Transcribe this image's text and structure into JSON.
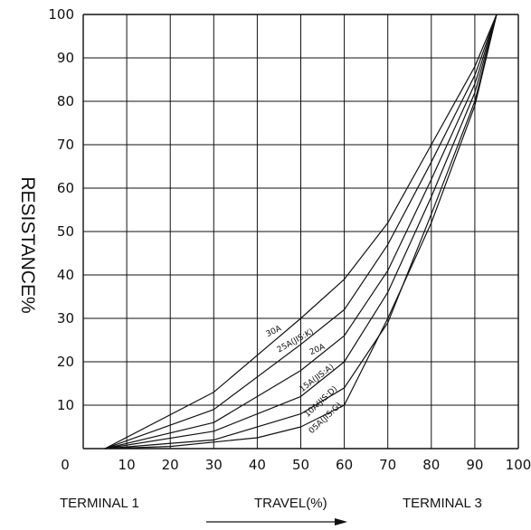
{
  "chart_data": {
    "type": "line",
    "title": "",
    "xlabel": "TRAVEL(%)",
    "ylabel": "RESISTANCE%",
    "xlim": [
      0,
      100
    ],
    "ylim": [
      0,
      100
    ],
    "x_ticks": [
      "0",
      "10",
      "20",
      "30",
      "40",
      "50",
      "60",
      "70",
      "80",
      "90",
      "100"
    ],
    "y_ticks": [
      "10",
      "20",
      "30",
      "40",
      "50",
      "60",
      "70",
      "80",
      "90",
      "100"
    ],
    "grid": true,
    "terminal_left": "TERMINAL 1",
    "terminal_right": "TERMINAL 3",
    "series": [
      {
        "name": "30A",
        "x": [
          5,
          30,
          50,
          60,
          70,
          80,
          90,
          95
        ],
        "y": [
          0,
          13,
          30,
          39,
          52,
          70,
          88,
          100
        ]
      },
      {
        "name": "25A(JIS:K)",
        "x": [
          5,
          30,
          50,
          60,
          70,
          80,
          90,
          95
        ],
        "y": [
          0,
          9,
          24,
          32,
          47,
          66,
          86,
          100
        ]
      },
      {
        "name": "20A",
        "x": [
          5,
          30,
          50,
          60,
          70,
          80,
          90,
          95
        ],
        "y": [
          0,
          6,
          18,
          26,
          41,
          62,
          84,
          100
        ]
      },
      {
        "name": "15A(JIS:A)",
        "x": [
          5,
          30,
          50,
          60,
          70,
          80,
          90,
          95
        ],
        "y": [
          0,
          4,
          12,
          20,
          36,
          58,
          82,
          100
        ]
      },
      {
        "name": "10A(JIS:D)",
        "x": [
          5,
          30,
          50,
          60,
          70,
          80,
          90,
          95
        ],
        "y": [
          0,
          2,
          8,
          14,
          29,
          54,
          80,
          100
        ]
      },
      {
        "name": "05A(JIS:G)",
        "x": [
          5,
          20,
          40,
          50,
          60,
          70,
          80,
          90,
          95
        ],
        "y": [
          0,
          0.5,
          2.5,
          5,
          10,
          30,
          52,
          79,
          100
        ]
      }
    ]
  }
}
